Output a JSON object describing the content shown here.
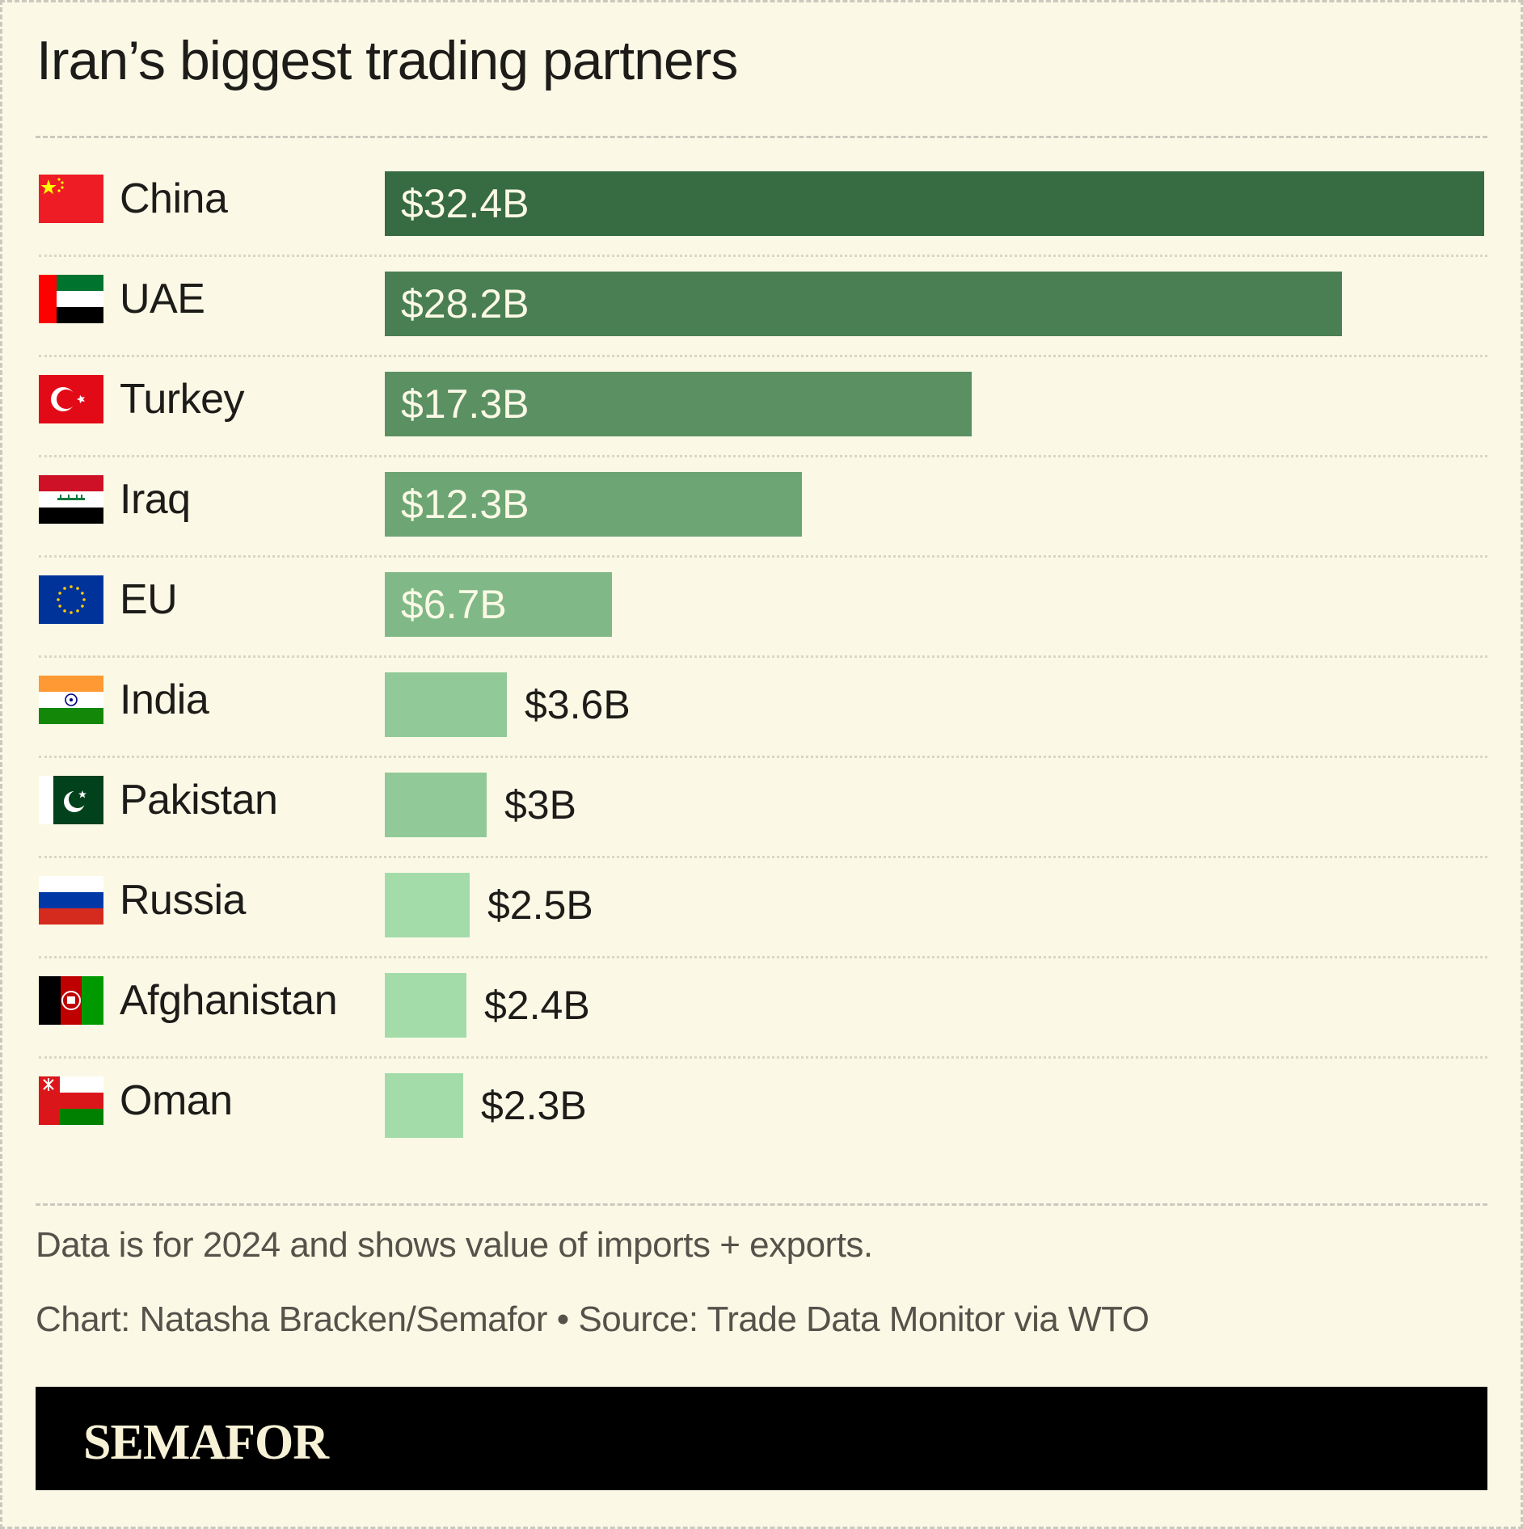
{
  "header": {
    "title": "Iran’s biggest trading partners"
  },
  "rows": [
    {
      "country": "China",
      "value": 32.4,
      "label": "$32.4B",
      "color": "#376b41",
      "flag": "china-flag-icon"
    },
    {
      "country": "UAE",
      "value": 28.2,
      "label": "$28.2B",
      "color": "#4a7f53",
      "flag": "uae-flag-icon"
    },
    {
      "country": "Turkey",
      "value": 17.3,
      "label": "$17.3B",
      "color": "#5b9063",
      "flag": "turkey-flag-icon"
    },
    {
      "country": "Iraq",
      "value": 12.3,
      "label": "$12.3B",
      "color": "#6da674",
      "flag": "iraq-flag-icon"
    },
    {
      "country": "EU",
      "value": 6.7,
      "label": "$6.7B",
      "color": "#80b987",
      "flag": "eu-flag-icon"
    },
    {
      "country": "India",
      "value": 3.6,
      "label": "$3.6B",
      "color": "#91c998",
      "flag": "india-flag-icon"
    },
    {
      "country": "Pakistan",
      "value": 3.0,
      "label": "$3B",
      "color": "#91c998",
      "flag": "pakistan-flag-icon"
    },
    {
      "country": "Russia",
      "value": 2.5,
      "label": "$2.5B",
      "color": "#a3dca9",
      "flag": "russia-flag-icon"
    },
    {
      "country": "Afghanistan",
      "value": 2.4,
      "label": "$2.4B",
      "color": "#a3dca9",
      "flag": "afghanistan-flag-icon"
    },
    {
      "country": "Oman",
      "value": 2.3,
      "label": "$2.3B",
      "color": "#a3dca9",
      "flag": "oman-flag-icon"
    }
  ],
  "footer": {
    "note": "Data is for 2024 and shows value of imports + exports.",
    "credit": "Chart: Natasha Bracken/Semafor • Source: Trade Data Monitor via WTO",
    "brand": "SEMAFOR"
  },
  "chart_data": {
    "type": "bar",
    "orientation": "horizontal",
    "title": "Iran’s biggest trading partners",
    "categories": [
      "China",
      "UAE",
      "Turkey",
      "Iraq",
      "EU",
      "India",
      "Pakistan",
      "Russia",
      "Afghanistan",
      "Oman"
    ],
    "values": [
      32.4,
      28.2,
      17.3,
      12.3,
      6.7,
      3.6,
      3.0,
      2.5,
      2.4,
      2.3
    ],
    "value_labels": [
      "$32.4B",
      "$28.2B",
      "$17.3B",
      "$12.3B",
      "$6.7B",
      "$3.6B",
      "$3B",
      "$2.5B",
      "$2.4B",
      "$2.3B"
    ],
    "unit": "USD billions",
    "xlabel": "",
    "ylabel": "",
    "grid": false,
    "legend": "none",
    "annotations": [
      "Data is for 2024 and shows value of imports + exports.",
      "Chart: Natasha Bracken/Semafor • Source: Trade Data Monitor via WTO"
    ]
  }
}
